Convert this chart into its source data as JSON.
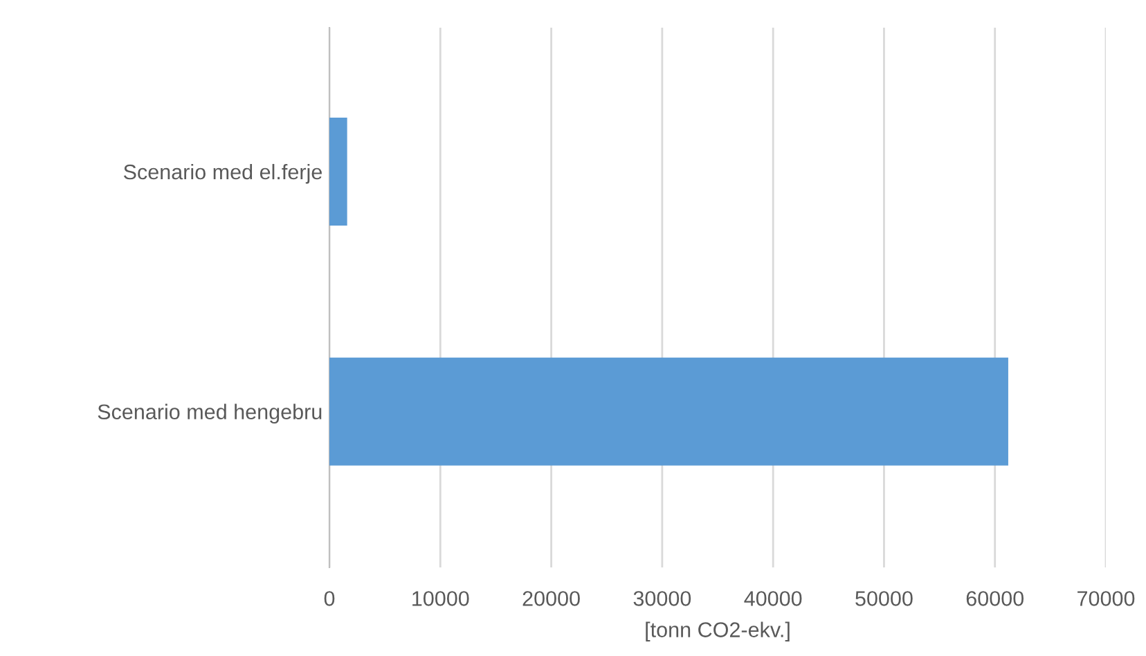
{
  "chart_data": {
    "type": "bar",
    "orientation": "horizontal",
    "xlabel": "[tonn CO2-ekv.]",
    "categories": [
      "Scenario med el.ferje",
      "Scenario med hengebru"
    ],
    "values": [
      1600,
      61200
    ],
    "color": "#5b9bd5",
    "xlim": [
      0,
      70000
    ],
    "xticks": [
      0,
      10000,
      20000,
      30000,
      40000,
      50000,
      60000,
      70000
    ],
    "grid": "x"
  }
}
